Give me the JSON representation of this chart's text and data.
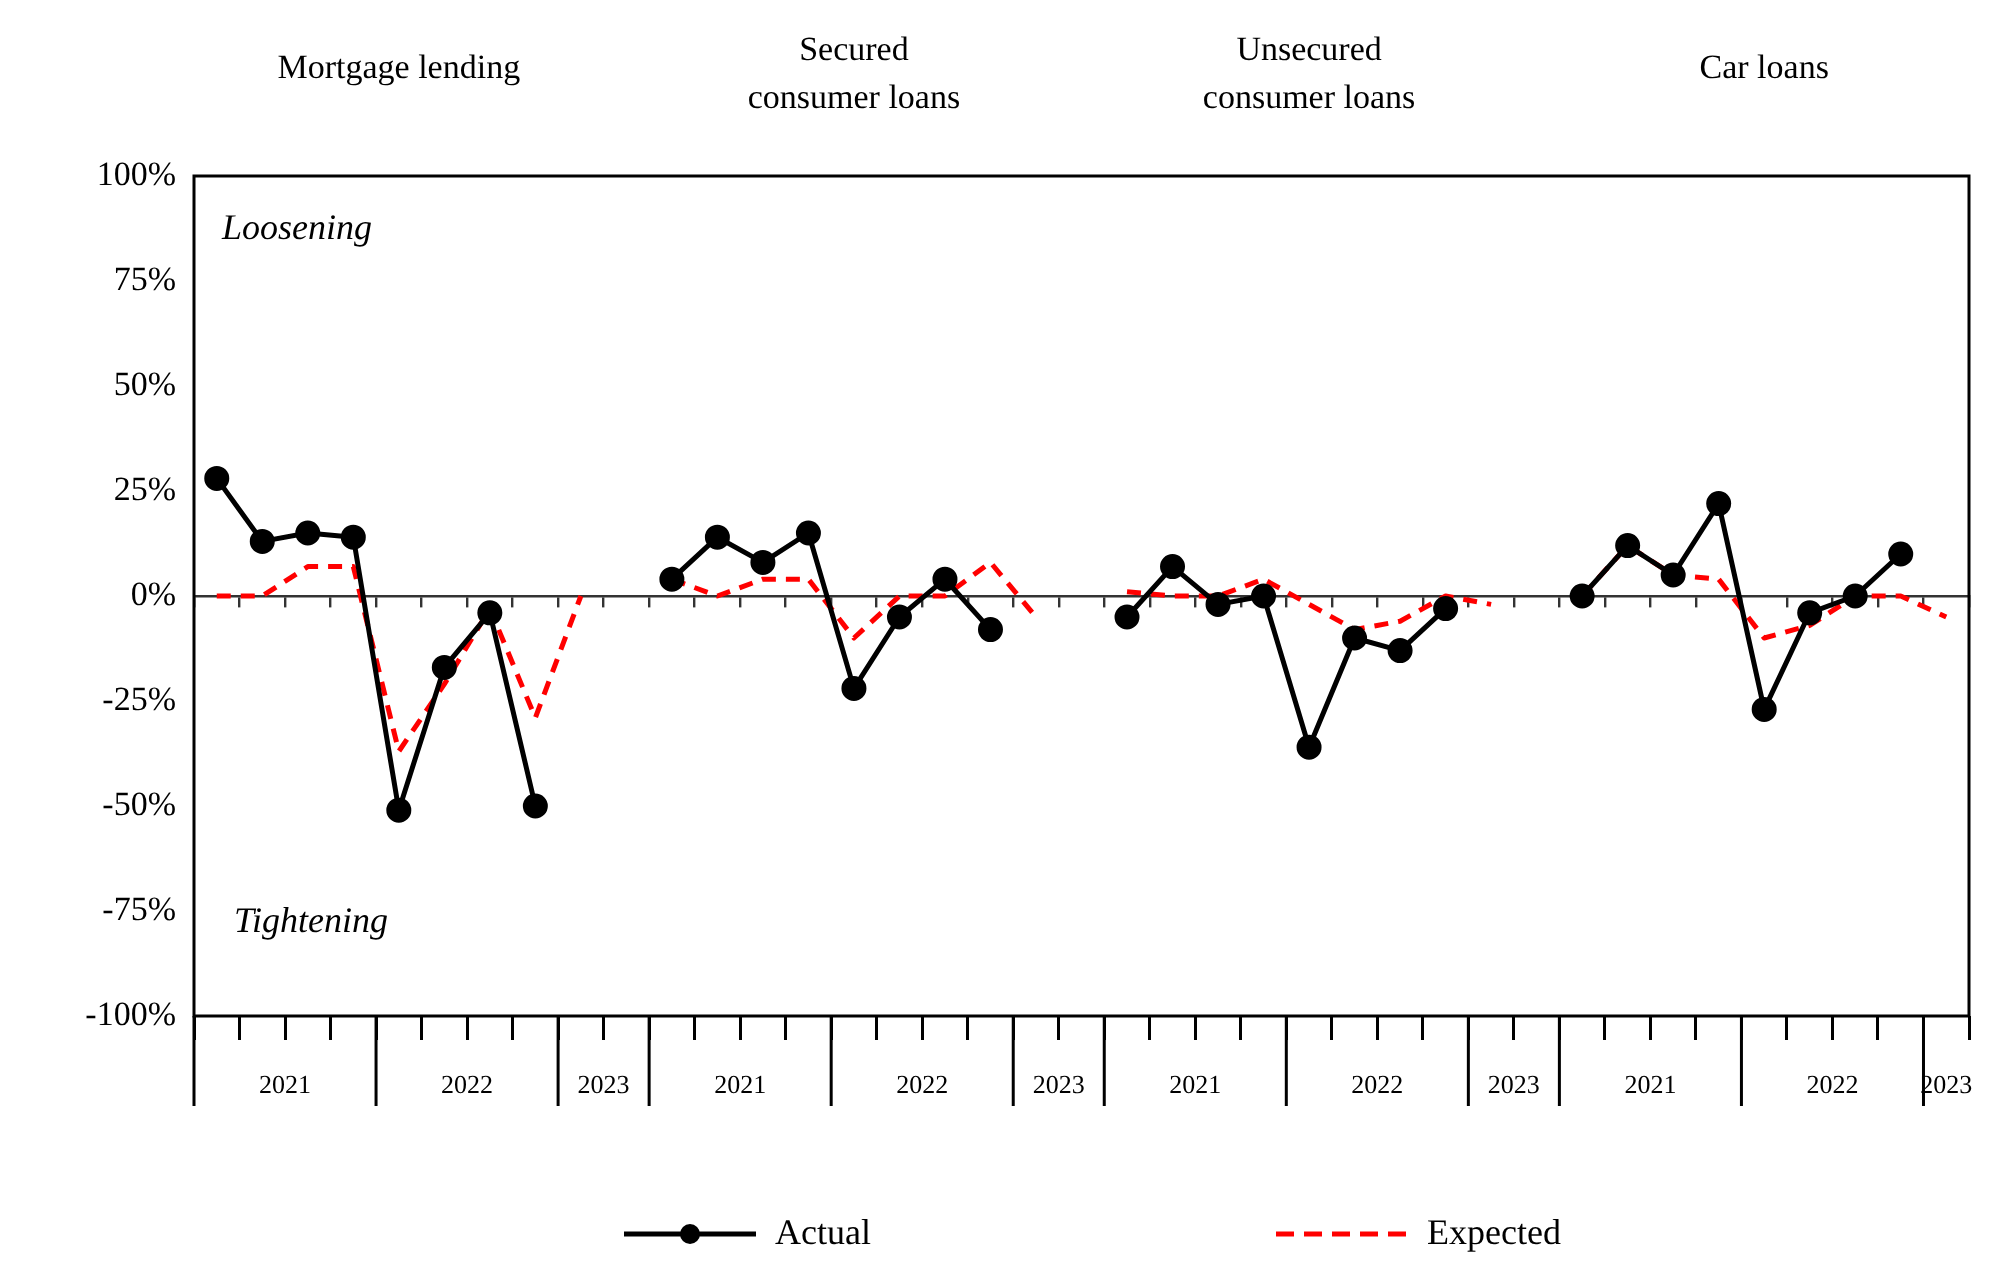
{
  "chart_data": {
    "type": "line",
    "categories": [
      null,
      null,
      null,
      null,
      null,
      null,
      null,
      null,
      null,
      null,
      null,
      null,
      null,
      null,
      null,
      null,
      null,
      null,
      null,
      null,
      null,
      null,
      null,
      null,
      null,
      null,
      null,
      null,
      null,
      null,
      null,
      null,
      null,
      null,
      null,
      null,
      null,
      null,
      null
    ],
    "series": [
      {
        "name": "Actual",
        "color": "#000000",
        "marker": "circle",
        "line_style": "solid",
        "values": [
          28,
          13,
          15,
          14,
          -51,
          -17,
          -4,
          -50,
          null,
          null,
          4,
          14,
          8,
          15,
          -22,
          -5,
          4,
          -8,
          null,
          null,
          -5,
          7,
          -2,
          0,
          -36,
          -10,
          -13,
          -3,
          null,
          null,
          0,
          12,
          5,
          22,
          -27,
          -4,
          0,
          10,
          null
        ]
      },
      {
        "name": "Expected",
        "color": "#ff0000",
        "marker": "none",
        "line_style": "dashed",
        "values": [
          0,
          0,
          7,
          7,
          -37,
          -21,
          -3,
          -29,
          0,
          null,
          4,
          0,
          4,
          4,
          -10,
          0,
          0,
          8,
          -5,
          null,
          1,
          0,
          0,
          4,
          -2,
          -8,
          -6,
          0,
          -2,
          null,
          0,
          12,
          5,
          4,
          -10,
          -7,
          0,
          0,
          -5
        ]
      }
    ],
    "ylim": [
      -100,
      100
    ],
    "yticks": [
      {
        "value": -100,
        "label": "-100%"
      },
      {
        "value": -75,
        "label": "-75%"
      },
      {
        "value": -50,
        "label": "-50%"
      },
      {
        "value": -25,
        "label": "-25%"
      },
      {
        "value": 0,
        "label": "0%"
      },
      {
        "value": 25,
        "label": "25%"
      },
      {
        "value": 50,
        "label": "50%"
      },
      {
        "value": 75,
        "label": "75%"
      },
      {
        "value": 100,
        "label": "100%"
      }
    ],
    "grid": false,
    "legend": "bottom",
    "ref_lines": [
      {
        "axis": "y",
        "value": 0,
        "color": "#333333"
      }
    ],
    "annotations": [
      "Mortgage lending",
      "Secured consumer loans",
      "Unsecured consumer loans",
      "Car loans",
      "Loosening",
      "Tightening",
      "2021",
      "2022",
      "2023",
      "2021",
      "2022",
      "2023",
      "2021",
      "2022",
      "2023",
      "2021",
      "2022",
      "2023"
    ]
  }
}
